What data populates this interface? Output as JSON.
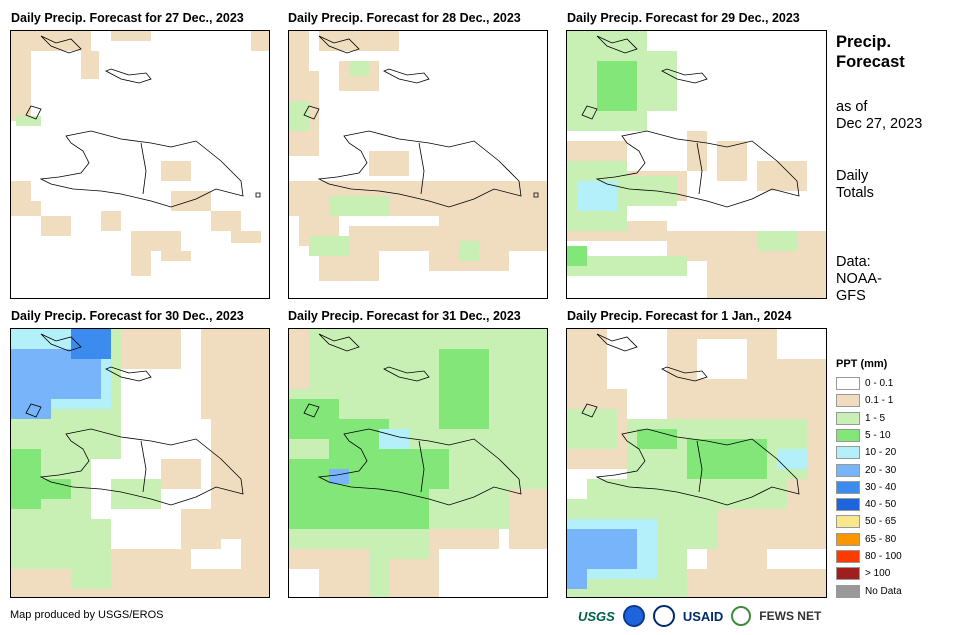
{
  "panels": [
    {
      "title": "Daily Precip. Forecast for 27 Dec., 2023"
    },
    {
      "title": "Daily Precip. Forecast for 28 Dec., 2023"
    },
    {
      "title": "Daily Precip. Forecast for 29 Dec., 2023"
    },
    {
      "title": "Daily Precip. Forecast for 30 Dec., 2023"
    },
    {
      "title": "Daily Precip. Forecast for 31 Dec., 2023"
    },
    {
      "title": "Daily Precip. Forecast for 1 Jan., 2024"
    }
  ],
  "side": {
    "title_line1": "Precip.",
    "title_line2": "Forecast",
    "asof_line1": "as of",
    "asof_line2": "Dec 27, 2023",
    "totals_line1": "Daily",
    "totals_line2": "Totals",
    "source_line1": "Data:",
    "source_line2": "NOAA-",
    "source_line3": "GFS"
  },
  "legend": {
    "title": "PPT (mm)",
    "items": [
      {
        "label": "0 - 0.1",
        "color": "#ffffff"
      },
      {
        "label": "0.1 - 1",
        "color": "#f0dcbe"
      },
      {
        "label": "1 - 5",
        "color": "#c8f0b4"
      },
      {
        "label": "5 - 10",
        "color": "#82e678"
      },
      {
        "label": "10 - 20",
        "color": "#b4f0fa"
      },
      {
        "label": "20 - 30",
        "color": "#78b4fa"
      },
      {
        "label": "30 - 40",
        "color": "#3c8cf0"
      },
      {
        "label": "40 - 50",
        "color": "#1e64dc"
      },
      {
        "label": "50 - 65",
        "color": "#fae68c"
      },
      {
        "label": "65 - 80",
        "color": "#fa9600"
      },
      {
        "label": "80 - 100",
        "color": "#fa3c00"
      },
      {
        "label": "> 100",
        "color": "#a01e1e"
      },
      {
        "label": "No Data",
        "color": "#999999"
      }
    ]
  },
  "footer": {
    "credit": "Map produced by USGS/EROS",
    "logo_usgs": "USGS",
    "logo_usaid": "USAID",
    "logo_fews": "FEWS NET"
  }
}
